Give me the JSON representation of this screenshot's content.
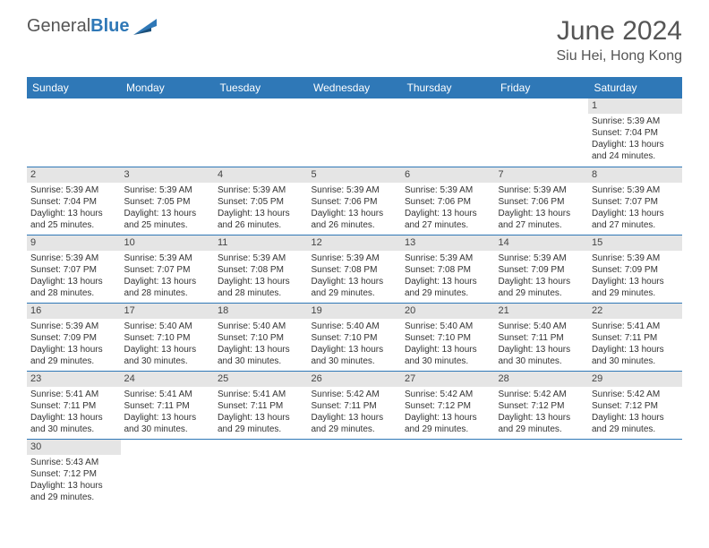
{
  "brand": {
    "part1": "General",
    "part2": "Blue"
  },
  "title": "June 2024",
  "location": "Siu Hei, Hong Kong",
  "weekdays": [
    "Sunday",
    "Monday",
    "Tuesday",
    "Wednesday",
    "Thursday",
    "Friday",
    "Saturday"
  ],
  "colors": {
    "header_bg": "#2f78b7",
    "header_text": "#ffffff",
    "daynum_bg": "#e5e5e5",
    "border": "#2f78b7",
    "title_color": "#555555",
    "body_text": "#333333"
  },
  "weeks": [
    [
      {
        "n": "",
        "sr": "",
        "ss": "",
        "dl": ""
      },
      {
        "n": "",
        "sr": "",
        "ss": "",
        "dl": ""
      },
      {
        "n": "",
        "sr": "",
        "ss": "",
        "dl": ""
      },
      {
        "n": "",
        "sr": "",
        "ss": "",
        "dl": ""
      },
      {
        "n": "",
        "sr": "",
        "ss": "",
        "dl": ""
      },
      {
        "n": "",
        "sr": "",
        "ss": "",
        "dl": ""
      },
      {
        "n": "1",
        "sr": "Sunrise: 5:39 AM",
        "ss": "Sunset: 7:04 PM",
        "dl": "Daylight: 13 hours and 24 minutes."
      }
    ],
    [
      {
        "n": "2",
        "sr": "Sunrise: 5:39 AM",
        "ss": "Sunset: 7:04 PM",
        "dl": "Daylight: 13 hours and 25 minutes."
      },
      {
        "n": "3",
        "sr": "Sunrise: 5:39 AM",
        "ss": "Sunset: 7:05 PM",
        "dl": "Daylight: 13 hours and 25 minutes."
      },
      {
        "n": "4",
        "sr": "Sunrise: 5:39 AM",
        "ss": "Sunset: 7:05 PM",
        "dl": "Daylight: 13 hours and 26 minutes."
      },
      {
        "n": "5",
        "sr": "Sunrise: 5:39 AM",
        "ss": "Sunset: 7:06 PM",
        "dl": "Daylight: 13 hours and 26 minutes."
      },
      {
        "n": "6",
        "sr": "Sunrise: 5:39 AM",
        "ss": "Sunset: 7:06 PM",
        "dl": "Daylight: 13 hours and 27 minutes."
      },
      {
        "n": "7",
        "sr": "Sunrise: 5:39 AM",
        "ss": "Sunset: 7:06 PM",
        "dl": "Daylight: 13 hours and 27 minutes."
      },
      {
        "n": "8",
        "sr": "Sunrise: 5:39 AM",
        "ss": "Sunset: 7:07 PM",
        "dl": "Daylight: 13 hours and 27 minutes."
      }
    ],
    [
      {
        "n": "9",
        "sr": "Sunrise: 5:39 AM",
        "ss": "Sunset: 7:07 PM",
        "dl": "Daylight: 13 hours and 28 minutes."
      },
      {
        "n": "10",
        "sr": "Sunrise: 5:39 AM",
        "ss": "Sunset: 7:07 PM",
        "dl": "Daylight: 13 hours and 28 minutes."
      },
      {
        "n": "11",
        "sr": "Sunrise: 5:39 AM",
        "ss": "Sunset: 7:08 PM",
        "dl": "Daylight: 13 hours and 28 minutes."
      },
      {
        "n": "12",
        "sr": "Sunrise: 5:39 AM",
        "ss": "Sunset: 7:08 PM",
        "dl": "Daylight: 13 hours and 29 minutes."
      },
      {
        "n": "13",
        "sr": "Sunrise: 5:39 AM",
        "ss": "Sunset: 7:08 PM",
        "dl": "Daylight: 13 hours and 29 minutes."
      },
      {
        "n": "14",
        "sr": "Sunrise: 5:39 AM",
        "ss": "Sunset: 7:09 PM",
        "dl": "Daylight: 13 hours and 29 minutes."
      },
      {
        "n": "15",
        "sr": "Sunrise: 5:39 AM",
        "ss": "Sunset: 7:09 PM",
        "dl": "Daylight: 13 hours and 29 minutes."
      }
    ],
    [
      {
        "n": "16",
        "sr": "Sunrise: 5:39 AM",
        "ss": "Sunset: 7:09 PM",
        "dl": "Daylight: 13 hours and 29 minutes."
      },
      {
        "n": "17",
        "sr": "Sunrise: 5:40 AM",
        "ss": "Sunset: 7:10 PM",
        "dl": "Daylight: 13 hours and 30 minutes."
      },
      {
        "n": "18",
        "sr": "Sunrise: 5:40 AM",
        "ss": "Sunset: 7:10 PM",
        "dl": "Daylight: 13 hours and 30 minutes."
      },
      {
        "n": "19",
        "sr": "Sunrise: 5:40 AM",
        "ss": "Sunset: 7:10 PM",
        "dl": "Daylight: 13 hours and 30 minutes."
      },
      {
        "n": "20",
        "sr": "Sunrise: 5:40 AM",
        "ss": "Sunset: 7:10 PM",
        "dl": "Daylight: 13 hours and 30 minutes."
      },
      {
        "n": "21",
        "sr": "Sunrise: 5:40 AM",
        "ss": "Sunset: 7:11 PM",
        "dl": "Daylight: 13 hours and 30 minutes."
      },
      {
        "n": "22",
        "sr": "Sunrise: 5:41 AM",
        "ss": "Sunset: 7:11 PM",
        "dl": "Daylight: 13 hours and 30 minutes."
      }
    ],
    [
      {
        "n": "23",
        "sr": "Sunrise: 5:41 AM",
        "ss": "Sunset: 7:11 PM",
        "dl": "Daylight: 13 hours and 30 minutes."
      },
      {
        "n": "24",
        "sr": "Sunrise: 5:41 AM",
        "ss": "Sunset: 7:11 PM",
        "dl": "Daylight: 13 hours and 30 minutes."
      },
      {
        "n": "25",
        "sr": "Sunrise: 5:41 AM",
        "ss": "Sunset: 7:11 PM",
        "dl": "Daylight: 13 hours and 29 minutes."
      },
      {
        "n": "26",
        "sr": "Sunrise: 5:42 AM",
        "ss": "Sunset: 7:11 PM",
        "dl": "Daylight: 13 hours and 29 minutes."
      },
      {
        "n": "27",
        "sr": "Sunrise: 5:42 AM",
        "ss": "Sunset: 7:12 PM",
        "dl": "Daylight: 13 hours and 29 minutes."
      },
      {
        "n": "28",
        "sr": "Sunrise: 5:42 AM",
        "ss": "Sunset: 7:12 PM",
        "dl": "Daylight: 13 hours and 29 minutes."
      },
      {
        "n": "29",
        "sr": "Sunrise: 5:42 AM",
        "ss": "Sunset: 7:12 PM",
        "dl": "Daylight: 13 hours and 29 minutes."
      }
    ],
    [
      {
        "n": "30",
        "sr": "Sunrise: 5:43 AM",
        "ss": "Sunset: 7:12 PM",
        "dl": "Daylight: 13 hours and 29 minutes."
      },
      {
        "n": "",
        "sr": "",
        "ss": "",
        "dl": ""
      },
      {
        "n": "",
        "sr": "",
        "ss": "",
        "dl": ""
      },
      {
        "n": "",
        "sr": "",
        "ss": "",
        "dl": ""
      },
      {
        "n": "",
        "sr": "",
        "ss": "",
        "dl": ""
      },
      {
        "n": "",
        "sr": "",
        "ss": "",
        "dl": ""
      },
      {
        "n": "",
        "sr": "",
        "ss": "",
        "dl": ""
      }
    ]
  ]
}
